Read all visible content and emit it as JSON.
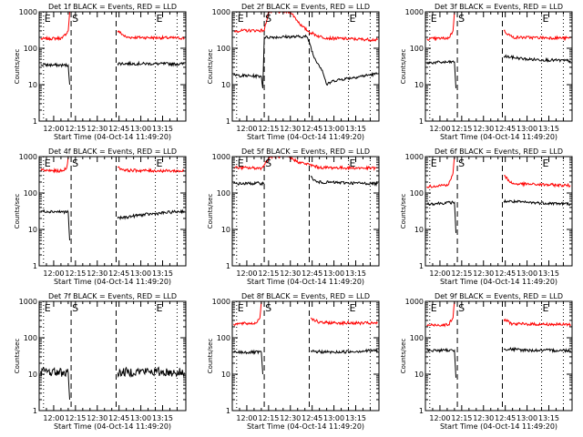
{
  "chart_data": {
    "type": "line",
    "layout": "3x3 grid",
    "x_tick_labels": [
      "12:00",
      "12:15",
      "12:30",
      "12:45",
      "13:00",
      "13:15"
    ],
    "x_tick_minutes": [
      0,
      15,
      30,
      45,
      60,
      75
    ],
    "xlim_minutes": [
      -10,
      91
    ],
    "xlabel": "Start Time (04-Oct-14 11:49:20)",
    "ylabel": "Counts/sec",
    "y_scale": "log",
    "ylim": [
      1,
      1000
    ],
    "y_tick_labels": [
      "1",
      "10",
      "100",
      "1000"
    ],
    "y_tick_values": [
      1,
      10,
      100,
      1000
    ],
    "series_colors": {
      "events": "#000000",
      "lld": "#ff0000"
    },
    "event_markers": [
      {
        "label": "E",
        "minute": -7,
        "style": "dotted"
      },
      {
        "label": "S",
        "minute": 12,
        "style": "dashed"
      },
      {
        "label": "",
        "minute": 43,
        "style": "dashed"
      },
      {
        "label": "E",
        "minute": 70,
        "style": "dotted"
      },
      {
        "label": "",
        "minute": 85,
        "style": "dotted"
      }
    ],
    "panels": [
      {
        "title": "Det 1f BLACK = Events, RED = LLD",
        "events": [
          [
            -9,
            35
          ],
          [
            10,
            34
          ],
          [
            11,
            10
          ],
          [
            12,
            null
          ],
          [
            43,
            null
          ],
          [
            44,
            38
          ],
          [
            90,
            37
          ]
        ],
        "lld": [
          [
            -9,
            180
          ],
          [
            6,
            190
          ],
          [
            10,
            300
          ],
          [
            11,
            1000
          ],
          [
            13,
            null
          ],
          [
            42,
            null
          ],
          [
            44,
            300
          ],
          [
            50,
            200
          ],
          [
            90,
            190
          ]
        ]
      },
      {
        "title": "Det 2f BLACK = Events, RED = LLD",
        "events": [
          [
            -9,
            18
          ],
          [
            10,
            17
          ],
          [
            11,
            8
          ],
          [
            12,
            200
          ],
          [
            41,
            210
          ],
          [
            43,
            150
          ],
          [
            46,
            60
          ],
          [
            52,
            25
          ],
          [
            55,
            10
          ],
          [
            60,
            13
          ],
          [
            90,
            20
          ]
        ],
        "lld": [
          [
            -9,
            300
          ],
          [
            12,
            310
          ],
          [
            15,
            1000
          ],
          [
            30,
            1000
          ],
          [
            38,
            400
          ],
          [
            43,
            280
          ],
          [
            50,
            210
          ],
          [
            56,
            190
          ],
          [
            90,
            170
          ]
        ]
      },
      {
        "title": "Det 3f BLACK = Events, RED = LLD",
        "events": [
          [
            -9,
            40
          ],
          [
            10,
            42
          ],
          [
            11,
            8
          ],
          [
            12,
            null
          ],
          [
            43,
            null
          ],
          [
            44,
            60
          ],
          [
            60,
            50
          ],
          [
            90,
            45
          ]
        ],
        "lld": [
          [
            -9,
            180
          ],
          [
            6,
            190
          ],
          [
            9,
            300
          ],
          [
            10,
            1000
          ],
          [
            13,
            null
          ],
          [
            42,
            null
          ],
          [
            44,
            300
          ],
          [
            50,
            200
          ],
          [
            90,
            190
          ]
        ]
      },
      {
        "title": "Det 4f BLACK = Events, RED = LLD",
        "events": [
          [
            -9,
            32
          ],
          [
            10,
            30
          ],
          [
            11,
            5
          ],
          [
            12,
            null
          ],
          [
            43,
            null
          ],
          [
            44,
            20
          ],
          [
            60,
            25
          ],
          [
            90,
            32
          ]
        ],
        "lld": [
          [
            -9,
            420
          ],
          [
            6,
            400
          ],
          [
            9,
            500
          ],
          [
            10,
            1000
          ],
          [
            13,
            null
          ],
          [
            42,
            null
          ],
          [
            44,
            500
          ],
          [
            50,
            420
          ],
          [
            90,
            400
          ]
        ]
      },
      {
        "title": "Det 5f BLACK = Events, RED = LLD",
        "events": [
          [
            -9,
            180
          ],
          [
            12,
            185
          ],
          [
            13,
            null
          ],
          [
            42,
            null
          ],
          [
            44,
            280
          ],
          [
            48,
            200
          ],
          [
            90,
            180
          ]
        ],
        "lld": [
          [
            -9,
            500
          ],
          [
            10,
            480
          ],
          [
            12,
            600
          ],
          [
            16,
            1000
          ],
          [
            28,
            1000
          ],
          [
            36,
            700
          ],
          [
            43,
            600
          ],
          [
            50,
            500
          ],
          [
            90,
            480
          ]
        ]
      },
      {
        "title": "Det 6f BLACK = Events, RED = LLD",
        "events": [
          [
            -9,
            50
          ],
          [
            10,
            55
          ],
          [
            11,
            8
          ],
          [
            12,
            null
          ],
          [
            43,
            null
          ],
          [
            44,
            60
          ],
          [
            60,
            55
          ],
          [
            90,
            50
          ]
        ],
        "lld": [
          [
            -9,
            150
          ],
          [
            6,
            170
          ],
          [
            9,
            350
          ],
          [
            10,
            1000
          ],
          [
            13,
            null
          ],
          [
            42,
            null
          ],
          [
            44,
            300
          ],
          [
            50,
            180
          ],
          [
            90,
            160
          ]
        ]
      },
      {
        "title": "Det 7f BLACK = Events, RED = LLD",
        "events": [
          [
            -9,
            12
          ],
          [
            10,
            11
          ],
          [
            11,
            2
          ],
          [
            12,
            null
          ],
          [
            43,
            null
          ],
          [
            44,
            11
          ],
          [
            60,
            12
          ],
          [
            90,
            11
          ]
        ],
        "lld": []
      },
      {
        "title": "Det 8f BLACK = Events, RED = LLD",
        "events": [
          [
            -9,
            40
          ],
          [
            10,
            40
          ],
          [
            11,
            10
          ],
          [
            12,
            null
          ],
          [
            43,
            null
          ],
          [
            44,
            42
          ],
          [
            60,
            40
          ],
          [
            90,
            45
          ]
        ],
        "lld": [
          [
            -9,
            240
          ],
          [
            6,
            250
          ],
          [
            9,
            350
          ],
          [
            10,
            1000
          ],
          [
            13,
            null
          ],
          [
            42,
            null
          ],
          [
            44,
            350
          ],
          [
            50,
            260
          ],
          [
            90,
            250
          ]
        ]
      },
      {
        "title": "Det 9f BLACK = Events, RED = LLD",
        "events": [
          [
            -9,
            45
          ],
          [
            10,
            45
          ],
          [
            11,
            8
          ],
          [
            12,
            null
          ],
          [
            43,
            null
          ],
          [
            44,
            50
          ],
          [
            60,
            45
          ],
          [
            90,
            45
          ]
        ],
        "lld": [
          [
            -9,
            220
          ],
          [
            6,
            230
          ],
          [
            9,
            350
          ],
          [
            10,
            1000
          ],
          [
            13,
            null
          ],
          [
            42,
            null
          ],
          [
            44,
            320
          ],
          [
            50,
            240
          ],
          [
            90,
            230
          ]
        ]
      }
    ]
  }
}
